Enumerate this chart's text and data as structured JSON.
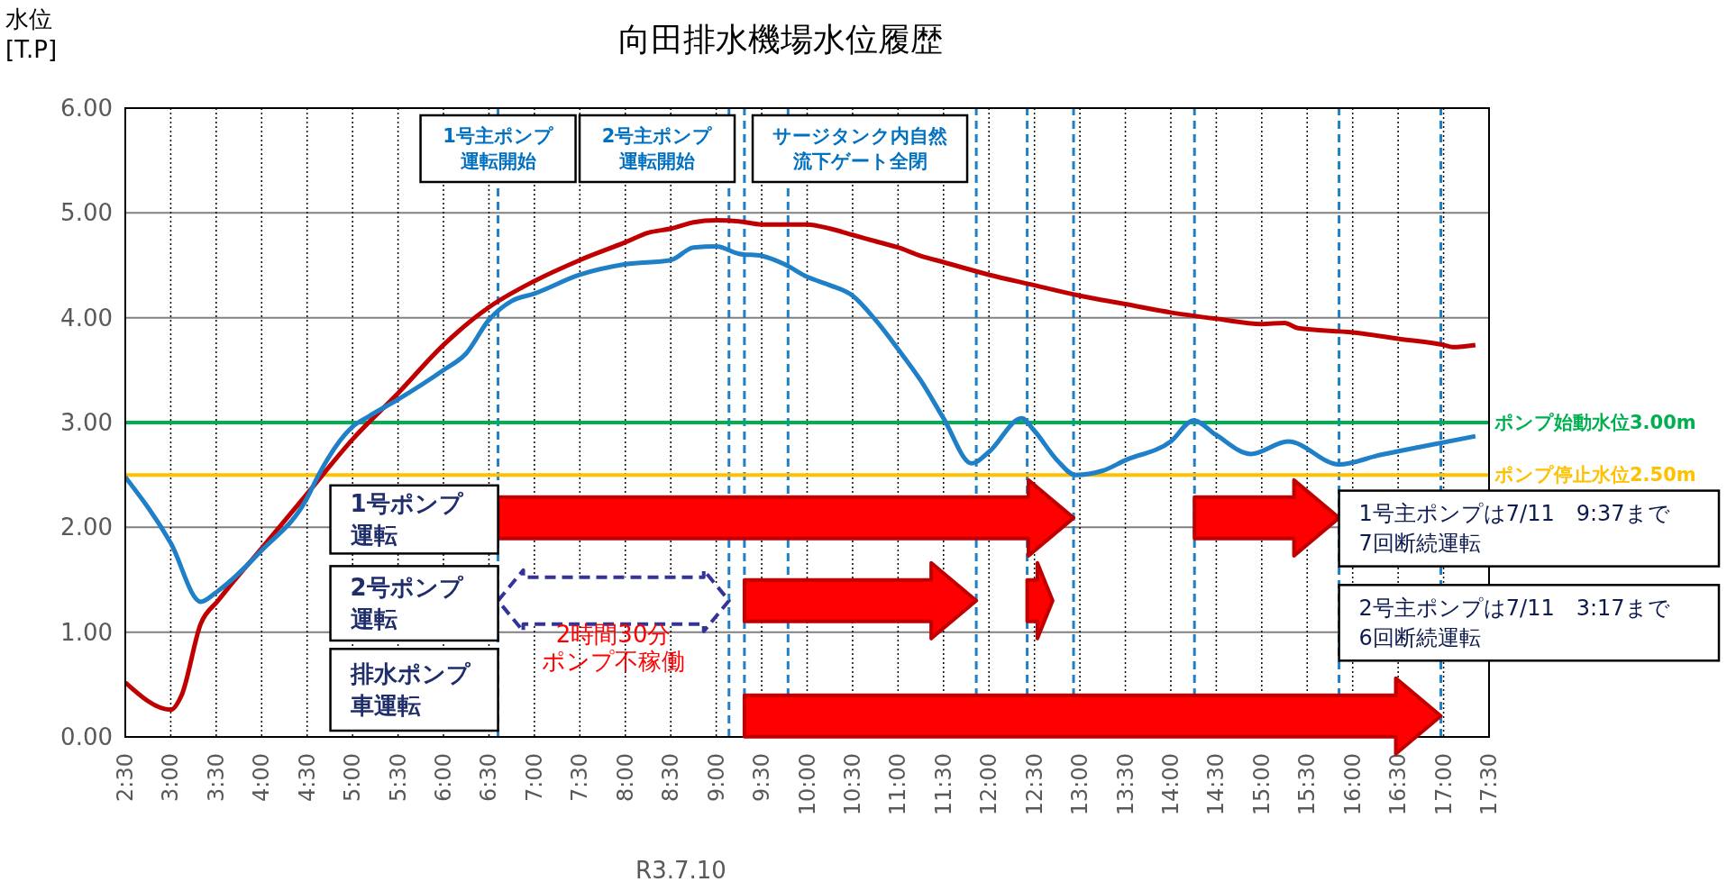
{
  "chart_data": {
    "type": "line",
    "title": "向田排水機場水位履歴",
    "xlabel": "R3.7.10",
    "ylabel": "水位\n[T.P]",
    "series": [
      {
        "color": "#c00000",
        "x": [
          2.5,
          3.0,
          3.12,
          3.33,
          3.52,
          4,
          4.5,
          5,
          5.5,
          6,
          6.5,
          7,
          7.5,
          8,
          8.25,
          8.5,
          8.75,
          9,
          9.25,
          9.5,
          10,
          10.25,
          10.5,
          10.75,
          11,
          11.25,
          11.5,
          12,
          12.5,
          13,
          13.5,
          14,
          14.5,
          15,
          15.25,
          15.4,
          16,
          16.5,
          17,
          17.1,
          17.35
        ],
        "values": [
          0.52,
          0.26,
          0.4,
          1.08,
          1.3,
          1.8,
          2.32,
          2.84,
          3.28,
          3.74,
          4.1,
          4.35,
          4.55,
          4.72,
          4.81,
          4.85,
          4.91,
          4.93,
          4.92,
          4.89,
          4.89,
          4.85,
          4.79,
          4.73,
          4.67,
          4.59,
          4.53,
          4.41,
          4.31,
          4.21,
          4.13,
          4.05,
          3.99,
          3.94,
          3.95,
          3.9,
          3.86,
          3.8,
          3.74,
          3.72,
          3.74
        ]
      },
      {
        "color": "#1f80c8",
        "x": [
          2.5,
          3.0,
          3.33,
          3.5,
          4,
          4.5,
          4.62,
          5,
          5.18,
          5.5,
          6,
          6.25,
          6.5,
          6.75,
          7,
          7.5,
          8,
          8.5,
          8.75,
          9,
          9.25,
          9.5,
          9.75,
          10,
          10.25,
          10.5,
          10.75,
          11,
          11.25,
          11.5,
          11.81,
          12,
          12.36,
          12.5,
          12.75,
          12.95,
          13.25,
          13.5,
          14,
          14.25,
          14.5,
          14.88,
          15.29,
          15.85,
          16.3,
          16.76,
          17.35
        ],
        "values": [
          2.48,
          1.85,
          1.29,
          1.38,
          1.78,
          2.28,
          2.49,
          2.96,
          3.06,
          3.22,
          3.5,
          3.66,
          3.98,
          4.16,
          4.23,
          4.41,
          4.51,
          4.55,
          4.67,
          4.68,
          4.61,
          4.59,
          4.51,
          4.39,
          4.31,
          4.21,
          3.98,
          3.7,
          3.4,
          3.04,
          2.61,
          2.72,
          3.04,
          2.92,
          2.64,
          2.5,
          2.54,
          2.64,
          2.82,
          3.02,
          2.88,
          2.7,
          2.82,
          2.6,
          2.69,
          2.77,
          2.87
        ]
      }
    ],
    "xlim": [
      2.5,
      17.5
    ],
    "xticks": [
      {
        "value": 2.5,
        "label": "2:30"
      },
      {
        "value": 3,
        "label": "3:00"
      },
      {
        "value": 3.5,
        "label": "3:30"
      },
      {
        "value": 4,
        "label": "4:00"
      },
      {
        "value": 4.5,
        "label": "4:30"
      },
      {
        "value": 5,
        "label": "5:00"
      },
      {
        "value": 5.5,
        "label": "5:30"
      },
      {
        "value": 6,
        "label": "6:00"
      },
      {
        "value": 6.5,
        "label": "6:30"
      },
      {
        "value": 7,
        "label": "7:00"
      },
      {
        "value": 7.5,
        "label": "7:30"
      },
      {
        "value": 8,
        "label": "8:00"
      },
      {
        "value": 8.5,
        "label": "8:30"
      },
      {
        "value": 9,
        "label": "9:00"
      },
      {
        "value": 9.5,
        "label": "9:30"
      },
      {
        "value": 10,
        "label": "10:00"
      },
      {
        "value": 10.5,
        "label": "10:30"
      },
      {
        "value": 11,
        "label": "11:00"
      },
      {
        "value": 11.5,
        "label": "11:30"
      },
      {
        "value": 12,
        "label": "12:00"
      },
      {
        "value": 12.5,
        "label": "12:30"
      },
      {
        "value": 13,
        "label": "13:00"
      },
      {
        "value": 13.5,
        "label": "13:30"
      },
      {
        "value": 14,
        "label": "14:00"
      },
      {
        "value": 14.5,
        "label": "14:30"
      },
      {
        "value": 15,
        "label": "15:00"
      },
      {
        "value": 15.5,
        "label": "15:30"
      },
      {
        "value": 16,
        "label": "16:00"
      },
      {
        "value": 16.5,
        "label": "16:30"
      },
      {
        "value": 17,
        "label": "17:00"
      },
      {
        "value": 17.5,
        "label": "17:30"
      }
    ],
    "ylim": [
      0,
      6
    ],
    "yticks": [
      {
        "value": 0,
        "label": "0.00"
      },
      {
        "value": 1,
        "label": "1.00"
      },
      {
        "value": 2,
        "label": "2.00"
      },
      {
        "value": 3,
        "label": "3.00"
      },
      {
        "value": 4,
        "label": "4.00"
      },
      {
        "value": 5,
        "label": "5.00"
      },
      {
        "value": 6,
        "label": "6.00"
      }
    ],
    "grid": true,
    "ref_lines": [
      {
        "axis": "x",
        "value": 6.6,
        "label": "1号主ポンプ運転開始",
        "color": "#1f80c8",
        "line_style": "dashed"
      },
      {
        "axis": "x",
        "value": 9.14,
        "label": "2号主ポンプ運転開始",
        "color": "#1f80c8",
        "line_style": "dashed"
      },
      {
        "axis": "x",
        "value": 9.31,
        "color": "#1f80c8",
        "line_style": "dashed"
      },
      {
        "axis": "x",
        "value": 9.79,
        "label": "サージタンク内自然流下ゲート全閉",
        "color": "#1f80c8",
        "line_style": "dashed"
      },
      {
        "axis": "x",
        "value": 11.86,
        "color": "#1f80c8",
        "line_style": "dashed"
      },
      {
        "axis": "x",
        "value": 12.42,
        "color": "#1f80c8",
        "line_style": "dashed"
      },
      {
        "axis": "x",
        "value": 12.93,
        "color": "#1f80c8",
        "line_style": "dashed"
      },
      {
        "axis": "x",
        "value": 14.26,
        "color": "#1f80c8",
        "line_style": "dashed"
      },
      {
        "axis": "x",
        "value": 15.85,
        "color": "#1f80c8",
        "line_style": "dashed"
      },
      {
        "axis": "x",
        "value": 16.97,
        "color": "#1f80c8",
        "line_style": "dashed"
      },
      {
        "axis": "y",
        "value": 3.0,
        "label": "ポンプ始動水位3.00m",
        "color": "#00b050",
        "line_style": "solid"
      },
      {
        "axis": "y",
        "value": 2.5,
        "label": "ポンプ停止水位2.50m",
        "color": "#ffc000",
        "line_style": "solid"
      }
    ],
    "annotations": [
      "1号ポンプ運転",
      "2号ポンプ運転",
      "排水ポンプ車運転",
      "2時間30分ポンプ不稼働",
      "1号主ポンプは7/11　9:37まで7回断続運転",
      "2号主ポンプは7/11　3:17まで6回断続運転"
    ]
  }
}
